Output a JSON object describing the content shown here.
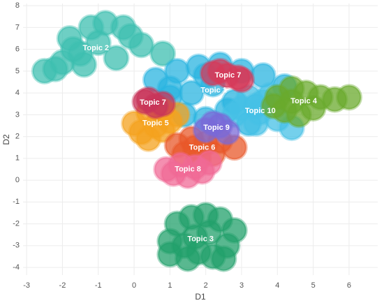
{
  "chart_data": {
    "type": "scatter",
    "x_label": "D1",
    "y_label": "D2",
    "xlim": [
      -3.1,
      6.8
    ],
    "xticks": [
      -3,
      -2,
      -1,
      0,
      1,
      2,
      3,
      4,
      5,
      6
    ],
    "ylim": [
      -4.35,
      8.1
    ],
    "yticks": [
      -4,
      -3,
      -2,
      -1,
      0,
      1,
      2,
      3,
      4,
      5,
      6,
      7,
      8
    ],
    "grid": true,
    "series": [
      {
        "name": "Topic 2",
        "color": "#3dbfb0",
        "x": [
          -2.5,
          -2.0,
          -1.5,
          -1.8,
          -1.2,
          -0.8,
          -0.3,
          -1.0,
          -0.5,
          0.2,
          -2.2,
          -1.4,
          0.8,
          -0.1,
          -1.7
        ],
        "y": [
          5.0,
          5.4,
          5.8,
          6.5,
          7.0,
          7.2,
          7.0,
          6.3,
          5.6,
          6.2,
          5.1,
          5.3,
          5.8,
          6.6,
          6.0
        ]
      },
      {
        "name": "Topic 1",
        "color": "#2ab4e0",
        "x": [
          0.6,
          1.2,
          1.8,
          2.4,
          3.0,
          3.6,
          4.2,
          1.0,
          1.6,
          2.2,
          2.8,
          3.4,
          1.4,
          2.0,
          2.6,
          3.2,
          2.0,
          1.0
        ],
        "y": [
          4.6,
          5.0,
          5.2,
          5.3,
          5.0,
          4.8,
          4.3,
          3.8,
          4.0,
          4.4,
          3.6,
          3.4,
          3.0,
          2.8,
          3.2,
          2.6,
          4.8,
          4.2
        ]
      },
      {
        "name": "Topic 10",
        "color": "#45c0e6",
        "x": [
          3.0,
          3.6,
          4.0,
          3.4,
          2.8,
          3.8,
          4.4,
          3.2,
          3.5
        ],
        "y": [
          3.3,
          3.6,
          2.8,
          2.6,
          3.0,
          3.9,
          2.4,
          3.8,
          3.1
        ]
      },
      {
        "name": "Topic 4",
        "color": "#6aaa2c",
        "x": [
          4.0,
          4.4,
          4.8,
          5.2,
          5.6,
          6.0,
          4.2,
          4.6,
          5.0,
          3.9,
          4.4
        ],
        "y": [
          3.8,
          4.2,
          4.0,
          3.8,
          3.7,
          3.8,
          3.2,
          3.0,
          3.3,
          3.4,
          3.6
        ]
      },
      {
        "name": "Topic 3",
        "color": "#22a06b",
        "x": [
          1.2,
          1.6,
          2.0,
          2.4,
          2.8,
          1.0,
          1.4,
          1.8,
          2.2,
          2.6,
          1.5,
          2.1,
          1.7,
          1.0,
          2.5
        ],
        "y": [
          -2.0,
          -1.7,
          -1.6,
          -1.8,
          -2.3,
          -2.8,
          -3.0,
          -3.3,
          -3.5,
          -3.0,
          -3.6,
          -2.4,
          -2.6,
          -3.4,
          -3.6
        ]
      },
      {
        "name": "Topic 5",
        "color": "#f4a21e",
        "x": [
          0.0,
          0.4,
          0.8,
          1.2,
          0.2,
          0.6,
          1.0,
          0.4,
          0.8
        ],
        "y": [
          2.6,
          3.1,
          3.2,
          3.0,
          2.2,
          2.5,
          2.7,
          1.9,
          2.3
        ]
      },
      {
        "name": "Topic 6",
        "color": "#e8582a",
        "x": [
          1.2,
          1.6,
          2.0,
          2.4,
          2.8,
          1.4,
          1.8,
          2.2,
          1.7
        ],
        "y": [
          1.6,
          1.9,
          1.7,
          1.8,
          1.5,
          1.2,
          1.0,
          1.2,
          1.5
        ]
      },
      {
        "name": "Topic 8",
        "color": "#f06a96",
        "x": [
          0.9,
          1.3,
          1.7,
          2.1,
          1.1,
          1.5,
          1.9
        ],
        "y": [
          0.5,
          0.7,
          0.6,
          0.8,
          0.3,
          0.2,
          0.4
        ]
      },
      {
        "name": "Topic 9",
        "color": "#7a6ad8",
        "x": [
          2.0,
          2.4,
          2.6,
          2.2
        ],
        "y": [
          2.3,
          2.5,
          2.2,
          2.6
        ]
      },
      {
        "name": "Topic 7",
        "color": "#d63a5a",
        "x": [
          2.2,
          2.6,
          3.0,
          2.4,
          2.9
        ],
        "y": [
          4.9,
          4.8,
          4.6,
          5.0,
          4.7
        ]
      },
      {
        "name": "Topic 7",
        "color": "#c8345a",
        "x": [
          0.3,
          0.6,
          0.8,
          0.4
        ],
        "y": [
          3.6,
          3.4,
          3.5,
          3.7
        ]
      }
    ]
  }
}
